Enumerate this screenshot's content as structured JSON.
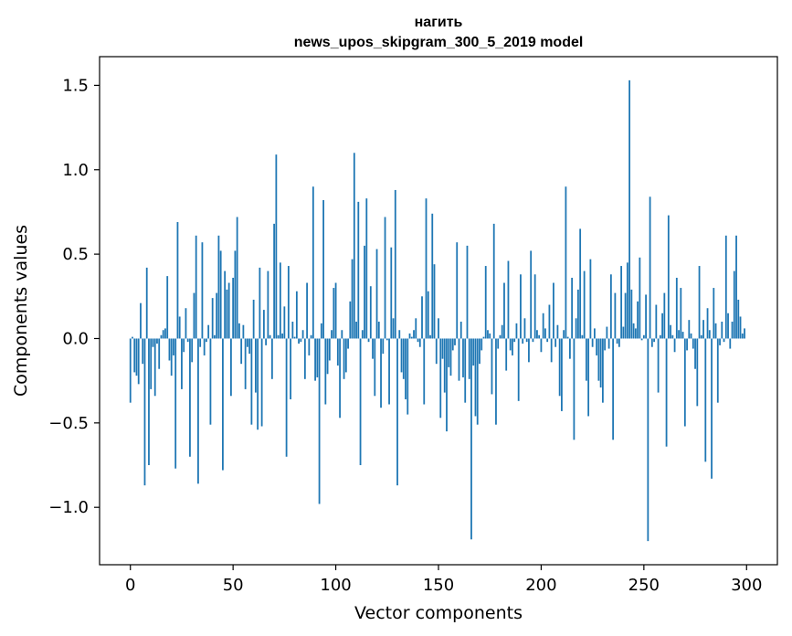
{
  "chart_data": {
    "type": "bar",
    "title": "нагить",
    "subtitle": "news_upos_skipgram_300_5_2019 model",
    "xlabel": "Vector components",
    "ylabel": "Components values",
    "xlim": [
      -15,
      315
    ],
    "ylim": [
      -1.34,
      1.67
    ],
    "xticks": [
      0,
      50,
      100,
      150,
      200,
      250,
      300
    ],
    "xtick_labels": [
      "0",
      "50",
      "100",
      "150",
      "200",
      "250",
      "300"
    ],
    "yticks": [
      -1.0,
      -0.5,
      0.0,
      0.5,
      1.0,
      1.5
    ],
    "ytick_labels": [
      "−1.0",
      "−0.5",
      "0.0",
      "0.5",
      "1.0",
      "1.5"
    ],
    "bar_color": "#1f77b4",
    "grid": false,
    "values": [
      -0.38,
      0.01,
      -0.2,
      -0.22,
      -0.27,
      0.21,
      -0.15,
      -0.87,
      0.42,
      -0.75,
      -0.3,
      -0.05,
      -0.34,
      -0.03,
      -0.18,
      0.02,
      0.05,
      0.06,
      0.37,
      -0.13,
      -0.22,
      -0.1,
      -0.77,
      0.69,
      0.13,
      -0.3,
      -0.08,
      0.18,
      -0.02,
      -0.7,
      -0.14,
      0.27,
      0.61,
      -0.86,
      -0.05,
      0.57,
      -0.1,
      -0.02,
      0.08,
      -0.51,
      0.24,
      0.02,
      0.27,
      0.61,
      0.52,
      -0.78,
      0.4,
      0.29,
      0.33,
      -0.34,
      0.36,
      0.52,
      0.72,
      0.09,
      -0.15,
      0.08,
      -0.3,
      -0.05,
      -0.09,
      -0.51,
      0.23,
      -0.32,
      -0.54,
      0.42,
      -0.52,
      0.17,
      -0.04,
      0.4,
      0.02,
      -0.24,
      0.68,
      1.09,
      0.02,
      0.45,
      0.03,
      0.19,
      -0.7,
      0.43,
      -0.36,
      0.1,
      0.01,
      0.28,
      -0.03,
      -0.02,
      0.05,
      -0.24,
      0.33,
      -0.1,
      0.02,
      0.9,
      -0.25,
      -0.23,
      -0.98,
      0.09,
      0.82,
      -0.39,
      -0.21,
      -0.13,
      0.05,
      0.3,
      0.33,
      -0.16,
      -0.47,
      0.05,
      -0.24,
      -0.2,
      -0.06,
      0.22,
      0.47,
      1.1,
      0.1,
      0.81,
      -0.75,
      0.05,
      0.55,
      0.83,
      -0.02,
      0.31,
      -0.12,
      -0.34,
      0.53,
      0.1,
      -0.41,
      -0.09,
      0.72,
      -0.01,
      -0.39,
      0.54,
      0.12,
      0.88,
      -0.87,
      0.05,
      -0.2,
      -0.24,
      -0.36,
      -0.45,
      0.03,
      0.01,
      0.05,
      0.12,
      -0.02,
      -0.05,
      0.25,
      -0.39,
      0.83,
      0.28,
      0.02,
      0.74,
      0.44,
      -0.15,
      0.12,
      -0.47,
      -0.12,
      -0.32,
      -0.55,
      -0.17,
      -0.22,
      -0.07,
      -0.04,
      0.57,
      -0.25,
      0.1,
      -0.23,
      -0.38,
      0.55,
      -0.24,
      -1.19,
      -0.16,
      -0.46,
      -0.51,
      -0.15,
      -0.07,
      0.01,
      0.43,
      0.05,
      0.03,
      -0.33,
      0.68,
      -0.51,
      -0.06,
      0.02,
      0.08,
      0.33,
      -0.19,
      0.46,
      -0.07,
      -0.1,
      -0.02,
      0.09,
      -0.37,
      0.38,
      -0.03,
      0.12,
      -0.02,
      -0.14,
      0.52,
      -0.02,
      0.38,
      0.05,
      0.02,
      -0.08,
      0.15,
      0.06,
      -0.02,
      0.2,
      -0.14,
      0.33,
      -0.05,
      0.08,
      -0.34,
      -0.43,
      0.05,
      0.9,
      0.01,
      -0.12,
      0.36,
      -0.6,
      0.12,
      0.29,
      0.65,
      0.02,
      0.4,
      -0.25,
      -0.46,
      0.47,
      -0.05,
      0.06,
      -0.1,
      -0.25,
      -0.29,
      -0.38,
      -0.07,
      0.07,
      -0.06,
      0.38,
      -0.6,
      0.27,
      -0.03,
      -0.05,
      0.43,
      0.07,
      0.27,
      0.45,
      1.53,
      0.29,
      0.09,
      0.06,
      0.22,
      0.48,
      -0.01,
      0.02,
      0.26,
      -1.2,
      0.84,
      -0.05,
      -0.02,
      0.2,
      -0.32,
      0.02,
      0.15,
      0.27,
      -0.64,
      0.73,
      0.08,
      0.02,
      -0.08,
      0.36,
      0.05,
      0.3,
      0.04,
      -0.52,
      -0.07,
      0.11,
      0.03,
      -0.06,
      -0.18,
      -0.4,
      0.43,
      0.02,
      0.11,
      -0.73,
      0.18,
      0.05,
      -0.83,
      0.3,
      0.09,
      -0.38,
      -0.04,
      0.1,
      -0.02,
      0.61,
      0.15,
      -0.06,
      0.1,
      0.4,
      0.61,
      0.23,
      0.13,
      0.03,
      0.06
    ]
  }
}
